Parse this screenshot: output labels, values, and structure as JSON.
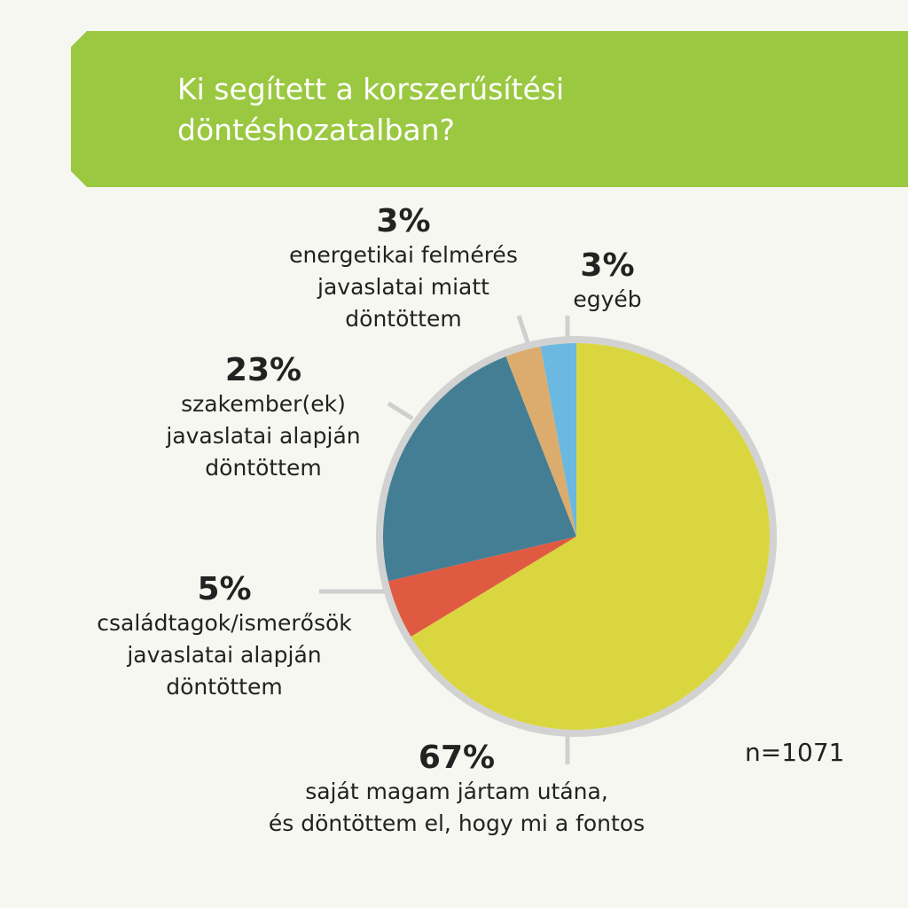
{
  "chart_data": {
    "type": "pie",
    "title": "Ki segített a korszerűsítési\ndöntéshozatalban?",
    "categories": [
      "saját magam jártam utána,\nés döntöttem el, hogy mi a fontos",
      "családtagok/ismerősök\njavaslatai alapján\ndöntöttem",
      "szakember(ek)\njavaslatai alapján\ndöntöttem",
      "energetikai felmérés\njavaslatai miatt\ndöntöttem",
      "egyéb"
    ],
    "values": [
      67,
      5,
      23,
      3,
      3
    ],
    "value_labels": [
      "67%",
      "5%",
      "23%",
      "3%",
      "3%"
    ],
    "colors": [
      "#d9d640",
      "#e05a42",
      "#447e94",
      "#dcac6e",
      "#6bb8e0"
    ],
    "note": "n=1071"
  }
}
